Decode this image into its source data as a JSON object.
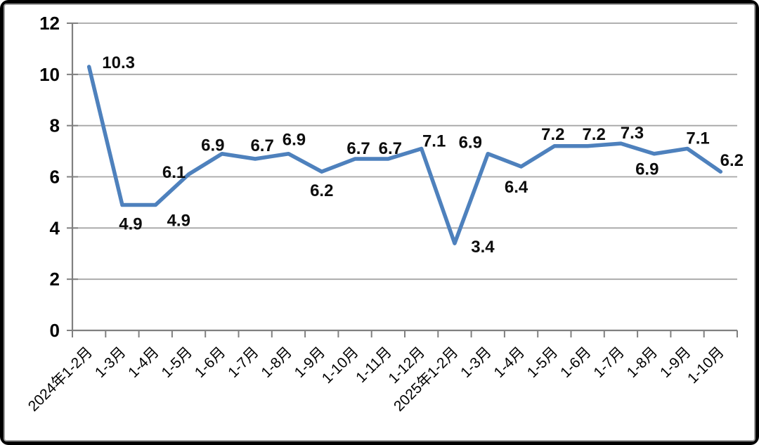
{
  "chart_data": {
    "type": "line",
    "title": "",
    "xlabel": "",
    "ylabel": "",
    "categories": [
      "2024年1-2月",
      "1-3月",
      "1-4月",
      "1-5月",
      "1-6月",
      "1-7月",
      "1-8月",
      "1-9月",
      "1-10月",
      "1-11月",
      "1-12月",
      "2025年1-2月",
      "1-3月",
      "1-4月",
      "1-5月",
      "1-6月",
      "1-7月",
      "1-8月",
      "1-9月",
      "1-10月"
    ],
    "series": [
      {
        "name": "",
        "values": [
          10.3,
          4.9,
          4.9,
          6.1,
          6.9,
          6.7,
          6.9,
          6.2,
          6.7,
          6.7,
          7.1,
          3.4,
          6.9,
          6.4,
          7.2,
          7.2,
          7.3,
          6.9,
          7.1,
          6.2
        ],
        "data_labels": [
          "10.3",
          "4.9",
          "4.9",
          "6.1",
          "6.9",
          "6.7",
          "6.9",
          "6.2",
          "6.7",
          "6.7",
          "7.1",
          "3.4",
          "6.9",
          "6.4",
          "7.2",
          "7.2",
          "7.3",
          "6.9",
          "7.1",
          "6.2"
        ],
        "label_positions": [
          "above-right",
          "below",
          "below-right",
          "above-left",
          "above-left",
          "above",
          "above",
          "below",
          "above",
          "above",
          "above-right",
          "right",
          "above-left",
          "below",
          "above",
          "above",
          "above-right",
          "below",
          "above-right",
          "above-right"
        ],
        "color": "#4E81BD"
      }
    ],
    "ylim": [
      0,
      12
    ],
    "yticks": [
      0,
      2,
      4,
      6,
      8,
      10,
      12
    ],
    "grid": "horizontal",
    "legend_position": "none",
    "x_label_rotation_deg": 45
  },
  "style_colors": {
    "frame_background": "#000000",
    "card_background": "#ffffff",
    "card_border": "#9b9b9b",
    "gridline": "#a6a6a6",
    "axis_line": "#808080",
    "text": "#000000"
  }
}
